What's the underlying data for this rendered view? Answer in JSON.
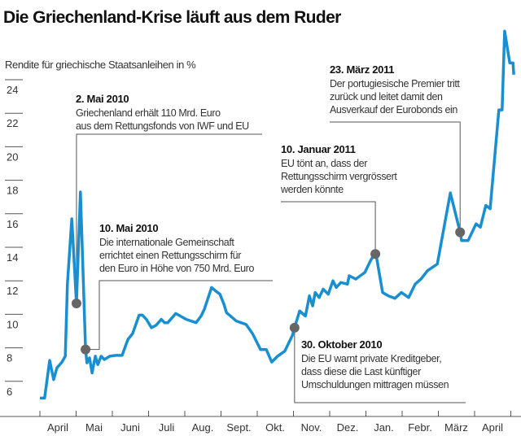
{
  "chart_data": {
    "type": "line",
    "title": "Die Griechenland-Krise läuft aus dem Ruder",
    "ylabel": "Rendite für griechische Staatsanleihen in %",
    "xlabel": "",
    "ylim": [
      5,
      27
    ],
    "yticks": [
      "24",
      "22",
      "20",
      "18",
      "16",
      "14",
      "12",
      "10",
      "8",
      "6"
    ],
    "ytick_values": [
      24,
      22,
      20,
      18,
      16,
      14,
      12,
      10,
      8,
      6
    ],
    "xticks": [
      "April",
      "Mai",
      "Juni",
      "Juli",
      "Aug.",
      "Sept.",
      "Okt.",
      "Nov.",
      "Dez.",
      "Jan.",
      "Febr.",
      "März",
      "April"
    ],
    "x_unit": "months since 1 April 2010",
    "grid": false,
    "color": "#1a8fd0",
    "series": [
      {
        "name": "Rendite",
        "points": [
          [
            0,
            5.0
          ],
          [
            0.13,
            5.0
          ],
          [
            0.27,
            7.25
          ],
          [
            0.38,
            6.1
          ],
          [
            0.47,
            6.8
          ],
          [
            0.61,
            7.15
          ],
          [
            0.7,
            7.5
          ],
          [
            0.76,
            11.8
          ],
          [
            0.88,
            15.7
          ],
          [
            1.01,
            10.65
          ],
          [
            1.12,
            17.3
          ],
          [
            1.26,
            7.9
          ],
          [
            1.3,
            7.1
          ],
          [
            1.37,
            7.4
          ],
          [
            1.44,
            6.5
          ],
          [
            1.53,
            7.5
          ],
          [
            1.6,
            7.0
          ],
          [
            1.69,
            7.5
          ],
          [
            1.78,
            7.3
          ],
          [
            1.93,
            7.5
          ],
          [
            2.09,
            7.55
          ],
          [
            2.27,
            7.55
          ],
          [
            2.43,
            8.5
          ],
          [
            2.56,
            8.85
          ],
          [
            2.74,
            9.95
          ],
          [
            2.83,
            9.95
          ],
          [
            2.94,
            9.7
          ],
          [
            3.08,
            9.2
          ],
          [
            3.21,
            9.35
          ],
          [
            3.35,
            9.7
          ],
          [
            3.44,
            9.5
          ],
          [
            3.53,
            9.5
          ],
          [
            3.75,
            10.05
          ],
          [
            4.04,
            9.7
          ],
          [
            4.31,
            9.5
          ],
          [
            4.45,
            9.9
          ],
          [
            4.54,
            10.3
          ],
          [
            4.74,
            11.6
          ],
          [
            4.85,
            11.4
          ],
          [
            4.97,
            11.2
          ],
          [
            5.08,
            10.6
          ],
          [
            5.15,
            10.1
          ],
          [
            5.42,
            9.6
          ],
          [
            5.69,
            9.4
          ],
          [
            5.87,
            8.85
          ],
          [
            6.09,
            7.9
          ],
          [
            6.25,
            7.9
          ],
          [
            6.4,
            7.15
          ],
          [
            6.56,
            7.5
          ],
          [
            6.76,
            7.8
          ],
          [
            6.97,
            8.75
          ],
          [
            7.03,
            9.2
          ],
          [
            7.17,
            10.2
          ],
          [
            7.33,
            9.9
          ],
          [
            7.44,
            11.1
          ],
          [
            7.53,
            10.5
          ],
          [
            7.6,
            11.3
          ],
          [
            7.71,
            11.0
          ],
          [
            7.82,
            11.5
          ],
          [
            7.96,
            11.2
          ],
          [
            8.09,
            12.0
          ],
          [
            8.18,
            11.6
          ],
          [
            8.31,
            11.9
          ],
          [
            8.49,
            11.8
          ],
          [
            8.54,
            12.3
          ],
          [
            8.72,
            12.1
          ],
          [
            8.97,
            12.5
          ],
          [
            9.15,
            13.3
          ],
          [
            9.26,
            13.6
          ],
          [
            9.3,
            13.3
          ],
          [
            9.46,
            11.3
          ],
          [
            9.62,
            11.1
          ],
          [
            9.8,
            10.95
          ],
          [
            9.98,
            11.3
          ],
          [
            10.18,
            11.0
          ],
          [
            10.36,
            11.8
          ],
          [
            10.52,
            12.1
          ],
          [
            10.7,
            12.6
          ],
          [
            10.97,
            13.0
          ],
          [
            11.33,
            17.25
          ],
          [
            11.6,
            14.9
          ],
          [
            11.64,
            14.4
          ],
          [
            11.82,
            14.4
          ],
          [
            12.04,
            15.4
          ],
          [
            12.16,
            15.2
          ],
          [
            12.31,
            16.5
          ],
          [
            12.43,
            16.3
          ],
          [
            12.67,
            22.2
          ],
          [
            12.76,
            22.2
          ],
          [
            12.83,
            26.9
          ],
          [
            12.97,
            25.0
          ],
          [
            13.06,
            25.0
          ],
          [
            13.08,
            24.3
          ]
        ]
      }
    ],
    "annotations": [
      {
        "date": "2. Mai 2010",
        "x": 1.01,
        "y": 10.65,
        "lines": [
          "Griechenland erhält 110 Mrd. Euro",
          "aus dem Rettungsfonds von IWF und EU"
        ]
      },
      {
        "date": "10. Mai 2010",
        "x": 1.26,
        "y": 7.9,
        "lines": [
          "Die internationale Gemeinschaft",
          "errichtet einen Rettungsschirm für",
          "den Euro in Höhe von 750 Mrd. Euro"
        ]
      },
      {
        "date": "30. Oktober 2010",
        "x": 7.03,
        "y": 9.2,
        "lines": [
          "Die EU warnt private Kreditgeber,",
          "dass diese die Last künftiger",
          "Umschuldungen mittragen müssen"
        ]
      },
      {
        "date": "10. Januar 2011",
        "x": 9.26,
        "y": 13.6,
        "lines": [
          "EU tönt an, dass der",
          "Rettungsschirm vergrössert",
          "werden könnte"
        ]
      },
      {
        "date": "23. März 2011",
        "x": 11.6,
        "y": 14.9,
        "lines": [
          "Der portugiesische Premier tritt",
          "zurück und leitet damit den",
          "Ausverkauf der Eurobonds ein"
        ]
      }
    ],
    "marker_color": "#666666"
  }
}
